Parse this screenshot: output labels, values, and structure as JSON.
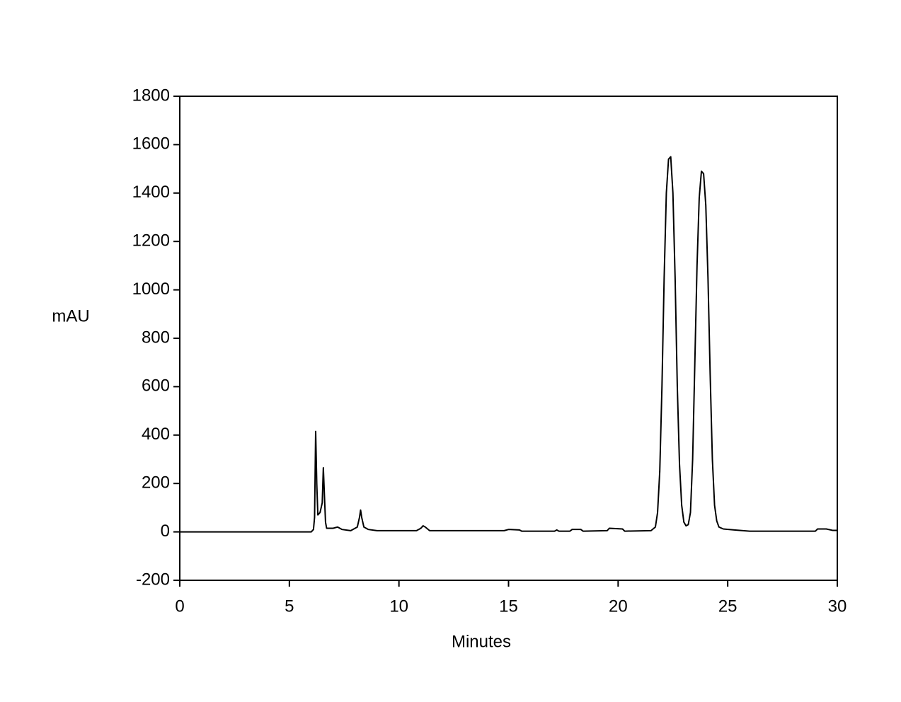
{
  "chart_data": {
    "type": "line",
    "xlabel": "Minutes",
    "ylabel": "mAU",
    "x": [
      0,
      6.0,
      6.1,
      6.15,
      6.2,
      6.25,
      6.3,
      6.4,
      6.5,
      6.55,
      6.6,
      6.65,
      6.7,
      7.0,
      7.2,
      7.4,
      7.8,
      8.1,
      8.2,
      8.25,
      8.3,
      8.4,
      8.6,
      9.0,
      10.8,
      11.0,
      11.1,
      11.2,
      11.4,
      14.8,
      15.0,
      15.5,
      15.6,
      17.1,
      17.2,
      17.3,
      17.8,
      17.9,
      18.3,
      18.4,
      19.5,
      19.6,
      20.2,
      20.3,
      21.5,
      21.7,
      21.8,
      21.9,
      22.0,
      22.1,
      22.2,
      22.3,
      22.4,
      22.5,
      22.6,
      22.7,
      22.8,
      22.9,
      23.0,
      23.1,
      23.2,
      23.3,
      23.4,
      23.5,
      23.6,
      23.7,
      23.8,
      23.9,
      24.0,
      24.1,
      24.2,
      24.3,
      24.4,
      24.5,
      24.6,
      24.8,
      25.3,
      26,
      29,
      29.1,
      29.5,
      29.8,
      30
    ],
    "values": [
      0,
      0,
      10,
      60,
      415,
      200,
      70,
      80,
      120,
      265,
      150,
      40,
      15,
      15,
      20,
      10,
      5,
      20,
      60,
      90,
      60,
      20,
      10,
      5,
      5,
      15,
      25,
      20,
      5,
      5,
      10,
      8,
      3,
      3,
      8,
      3,
      3,
      10,
      10,
      3,
      5,
      15,
      12,
      3,
      5,
      20,
      80,
      250,
      600,
      1050,
      1400,
      1540,
      1550,
      1400,
      1050,
      600,
      280,
      110,
      40,
      25,
      30,
      80,
      300,
      700,
      1100,
      1380,
      1490,
      1480,
      1350,
      1050,
      650,
      300,
      110,
      45,
      20,
      12,
      8,
      3,
      3,
      12,
      12,
      6,
      6
    ],
    "color": "#000000",
    "xlim": [
      0,
      30
    ],
    "xticks": [
      0,
      5,
      10,
      15,
      20,
      25,
      30
    ],
    "ylim": [
      -200,
      1800
    ],
    "yticks": [
      -200,
      0,
      200,
      400,
      600,
      800,
      1000,
      1200,
      1400,
      1600,
      1800
    ]
  }
}
